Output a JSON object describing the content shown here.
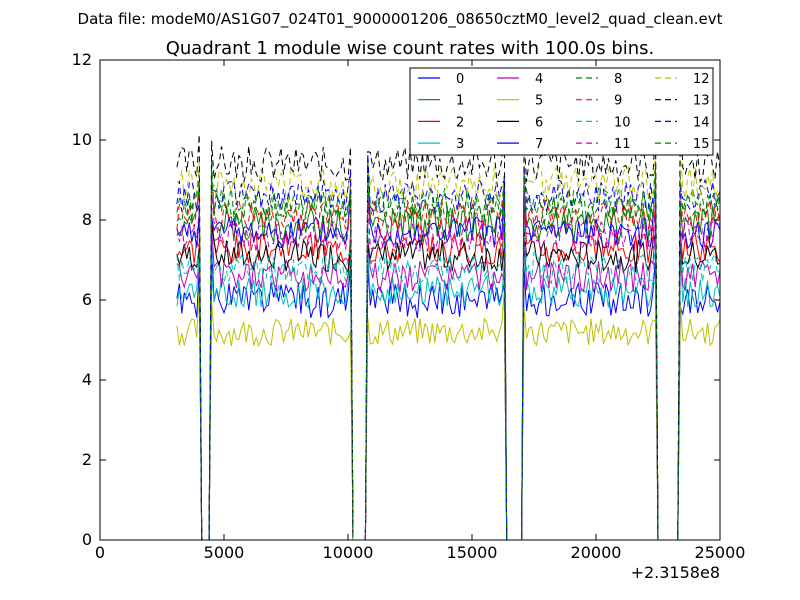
{
  "chart_data": {
    "type": "line",
    "suptitle": "Data file: modeM0/AS1G07_024T01_9000001206_08650cztM0_level2_quad_clean.evt",
    "title": "Quadrant 1 module wise count rates with 100.0s bins.",
    "xlabel": "",
    "ylabel": "",
    "x_offset_label": "+2.3158e8",
    "xlim": [
      0,
      25000
    ],
    "ylim": [
      0,
      12
    ],
    "x_ticks": [
      0,
      5000,
      10000,
      15000,
      20000,
      25000
    ],
    "y_ticks": [
      0,
      2,
      4,
      6,
      8,
      10,
      12
    ],
    "bin_seconds": 100,
    "x_start": 3100,
    "x_end": 25000,
    "gaps": [
      [
        4100,
        4400
      ],
      [
        10200,
        10700
      ],
      [
        16400,
        17000
      ],
      [
        22500,
        23300
      ]
    ],
    "legend_position": "top-right",
    "legend_columns": 4,
    "series": [
      {
        "name": "0",
        "color": "#0000ff",
        "dash": "solid",
        "mean": 6.0,
        "jitter": 0.45
      },
      {
        "name": "1",
        "color": "#008000",
        "dash": "solid",
        "mean": 7.9,
        "jitter": 0.45
      },
      {
        "name": "2",
        "color": "#ff0000",
        "dash": "solid",
        "mean": 7.3,
        "jitter": 0.4
      },
      {
        "name": "3",
        "color": "#00bfbf",
        "dash": "solid",
        "mean": 6.2,
        "jitter": 0.4
      },
      {
        "name": "4",
        "color": "#bf00bf",
        "dash": "solid",
        "mean": 6.6,
        "jitter": 0.4
      },
      {
        "name": "5",
        "color": "#bfbf00",
        "dash": "solid",
        "mean": 5.2,
        "jitter": 0.35
      },
      {
        "name": "6",
        "color": "#000000",
        "dash": "solid",
        "mean": 7.1,
        "jitter": 0.4
      },
      {
        "name": "7",
        "color": "#0000ff",
        "dash": "solid",
        "mean": 7.7,
        "jitter": 0.4
      },
      {
        "name": "8",
        "color": "#008000",
        "dash": "dashed",
        "mean": 8.4,
        "jitter": 0.4
      },
      {
        "name": "9",
        "color": "#ff0000",
        "dash": "dashed",
        "mean": 8.1,
        "jitter": 0.4
      },
      {
        "name": "10",
        "color": "#00bfbf",
        "dash": "dashed",
        "mean": 6.8,
        "jitter": 0.4
      },
      {
        "name": "11",
        "color": "#bf00bf",
        "dash": "dashed",
        "mean": 7.6,
        "jitter": 0.4
      },
      {
        "name": "12",
        "color": "#bfbf00",
        "dash": "dashed",
        "mean": 8.9,
        "jitter": 0.45
      },
      {
        "name": "13",
        "color": "#000000",
        "dash": "dashed",
        "mean": 9.4,
        "jitter": 0.45
      },
      {
        "name": "14",
        "color": "#0000ff",
        "dash": "dashed",
        "mean": 8.6,
        "jitter": 0.4
      },
      {
        "name": "15",
        "color": "#008000",
        "dash": "dashed",
        "mean": 8.3,
        "jitter": 0.4
      }
    ]
  }
}
